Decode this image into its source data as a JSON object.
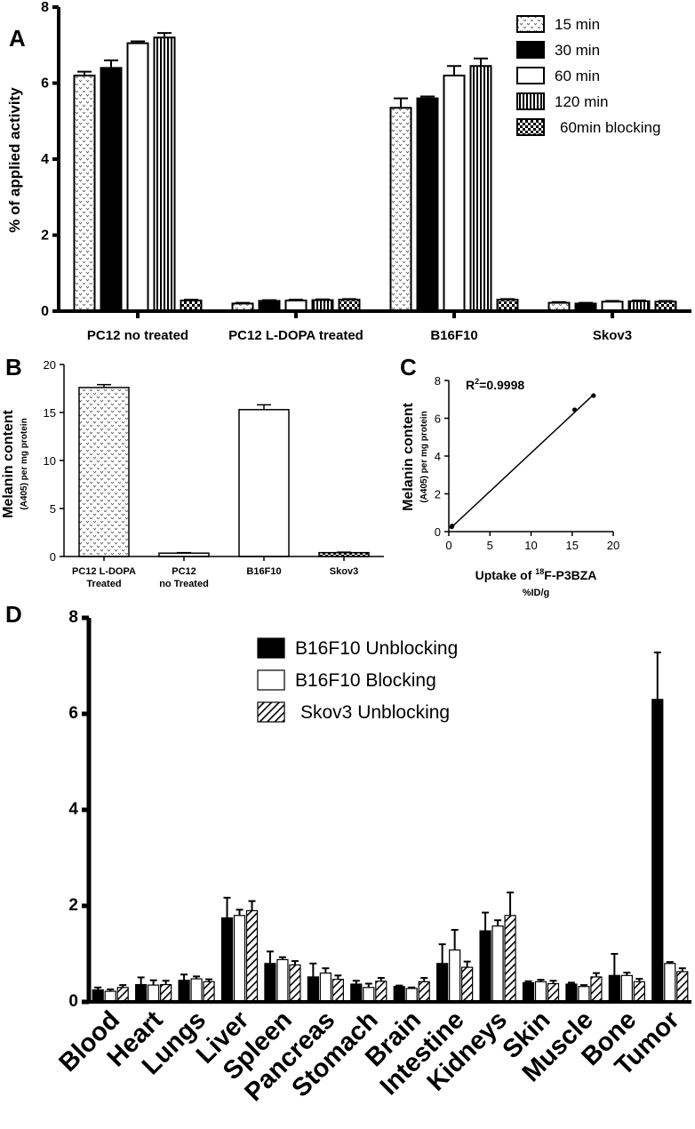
{
  "panels": {
    "A": {
      "letter": "A",
      "ylabel": "% of applied activity",
      "chart_data": {
        "type": "bar",
        "categories": [
          "PC12 no treated",
          "PC12 L-DOPA treated",
          "B16F10",
          "Skov3"
        ],
        "ylim": [
          0,
          8
        ],
        "yticks": [
          "0",
          "2",
          "4",
          "6",
          "8"
        ],
        "legend_position": "top-right",
        "series": [
          {
            "name": "15 min",
            "values": [
              6.2,
              0.2,
              5.35,
              0.22
            ],
            "errors": [
              0.1,
              0.02,
              0.25,
              0.02
            ],
            "fill": "dots"
          },
          {
            "name": "30 min",
            "values": [
              6.4,
              0.27,
              5.6,
              0.2
            ],
            "errors": [
              0.2,
              0.02,
              0.05,
              0.02
            ],
            "fill": "solid"
          },
          {
            "name": "60 min",
            "values": [
              7.05,
              0.28,
              6.2,
              0.25
            ],
            "errors": [
              0.05,
              0.02,
              0.25,
              0.02
            ],
            "fill": "white"
          },
          {
            "name": "120 min",
            "values": [
              7.2,
              0.29,
              6.45,
              0.26
            ],
            "errors": [
              0.12,
              0.02,
              0.2,
              0.02
            ],
            "fill": "vlines"
          },
          {
            "name": "60min blocking",
            "values": [
              0.28,
              0.3,
              0.3,
              0.25
            ],
            "errors": [
              0.02,
              0.02,
              0.02,
              0.02
            ],
            "fill": "checker"
          }
        ]
      }
    },
    "B": {
      "letter": "B",
      "ylabel": "Melanin content",
      "ylabel_sub": "(A405) per mg protein",
      "chart_data": {
        "type": "bar",
        "categories": [
          [
            "PC12 L-DOPA",
            "Treated"
          ],
          [
            "PC12",
            "no Treated"
          ],
          [
            "B16F10"
          ],
          [
            "Skov3"
          ]
        ],
        "ylim": [
          0,
          20
        ],
        "yticks": [
          "0",
          "5",
          "10",
          "15",
          "20"
        ],
        "values": [
          17.6,
          0.35,
          15.3,
          0.4
        ],
        "errors": [
          0.3,
          0.05,
          0.5,
          0.05
        ],
        "fills": [
          "dots",
          "white",
          "white",
          "checker"
        ]
      }
    },
    "C": {
      "letter": "C",
      "ylabel": "Melanin content",
      "ylabel_sub": "(A405) per mg protein",
      "xlabel_pre": "Uptake of ",
      "xlabel_sup": "18",
      "xlabel_post": "F-P3BZA",
      "xunit": "%ID/g",
      "r2_label": "R",
      "r2_sup": "2",
      "r2_value": "=0.9998",
      "chart_data": {
        "type": "scatter",
        "xlim": [
          0,
          20
        ],
        "ylim": [
          0,
          8
        ],
        "xticks": [
          "0",
          "5",
          "10",
          "15",
          "20"
        ],
        "yticks": [
          "0",
          "2",
          "4",
          "6",
          "8"
        ],
        "points": [
          [
            0.35,
            0.25
          ],
          [
            0.4,
            0.3
          ],
          [
            15.3,
            6.45
          ],
          [
            17.6,
            7.2
          ]
        ],
        "fit": [
          [
            0.3,
            0.22
          ],
          [
            17.6,
            7.25
          ]
        ]
      }
    },
    "D": {
      "letter": "D",
      "chart_data": {
        "type": "bar",
        "categories": [
          "Blood",
          "Heart",
          "Lungs",
          "Liver",
          "Spleen",
          "Pancreas",
          "Stomach",
          "Brain",
          "Intestine",
          "Kidneys",
          "Skin",
          "Muscle",
          "Bone",
          "Tumor"
        ],
        "ylim": [
          0,
          8
        ],
        "yticks": [
          "0",
          "2",
          "4",
          "6",
          "8"
        ],
        "legend_position": "top-center",
        "series": [
          {
            "name": "B16F10 Unblocking",
            "values": [
              0.25,
              0.36,
              0.45,
              1.75,
              0.8,
              0.52,
              0.37,
              0.32,
              0.8,
              1.48,
              0.4,
              0.37,
              0.55,
              6.3
            ],
            "errors": [
              0.05,
              0.15,
              0.12,
              0.42,
              0.25,
              0.28,
              0.07,
              0.02,
              0.4,
              0.38,
              0.03,
              0.03,
              0.45,
              0.98
            ],
            "fill": "solid"
          },
          {
            "name": "B16F10 Blocking",
            "values": [
              0.22,
              0.35,
              0.48,
              1.8,
              0.88,
              0.6,
              0.3,
              0.28,
              1.08,
              1.58,
              0.42,
              0.32,
              0.55,
              0.8
            ],
            "errors": [
              0.04,
              0.1,
              0.05,
              0.12,
              0.05,
              0.1,
              0.08,
              0.02,
              0.42,
              0.12,
              0.04,
              0.03,
              0.06,
              0.03
            ],
            "fill": "white"
          },
          {
            "name": "Skov3 Unblocking",
            "values": [
              0.3,
              0.36,
              0.42,
              1.9,
              0.77,
              0.47,
              0.43,
              0.42,
              0.72,
              1.8,
              0.38,
              0.52,
              0.42,
              0.63
            ],
            "errors": [
              0.05,
              0.08,
              0.05,
              0.2,
              0.08,
              0.08,
              0.07,
              0.08,
              0.12,
              0.48,
              0.06,
              0.08,
              0.06,
              0.07
            ],
            "fill": "hatch"
          }
        ]
      }
    }
  }
}
